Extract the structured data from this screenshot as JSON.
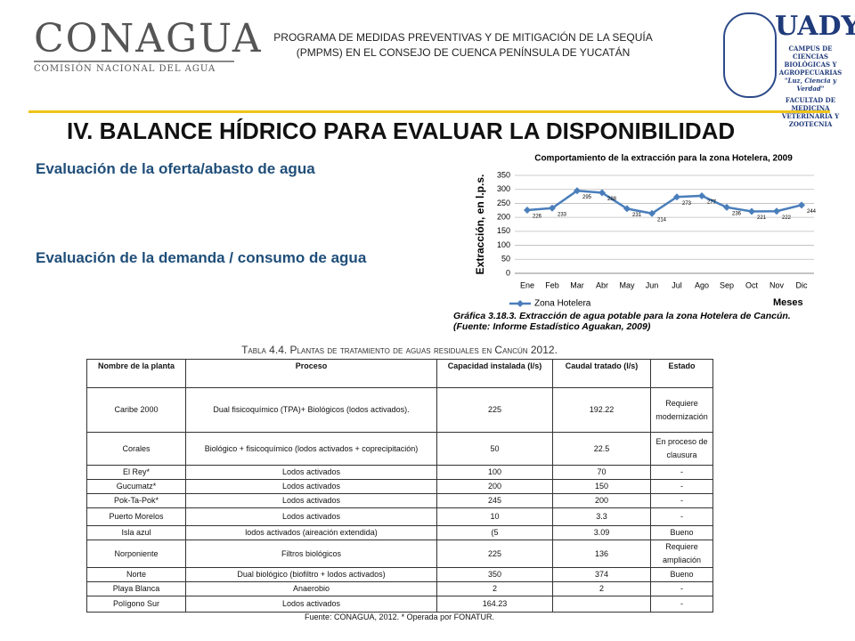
{
  "header": {
    "left_logo": {
      "name": "CONAGUA",
      "subtitle": "COMISIÓN NACIONAL DEL AGUA"
    },
    "program_lines": [
      "PROGRAMA DE MEDIDAS PREVENTIVAS Y DE MITIGACIÓN DE LA SEQUÍA",
      "(PMPMS) EN EL CONSEJO DE CUENCA PENÍNSULA DE YUCATÁN"
    ],
    "right_logo": {
      "name": "UADY",
      "lines": [
        "CAMPUS DE",
        "CIENCIAS",
        "BIOLÓGICAS Y",
        "AGROPECUARIAS",
        "\"Luz, Ciencia y Verdad\"",
        "FACULTAD DE MEDICINA",
        "VETERINARIA Y ZOOTECNIA"
      ]
    }
  },
  "title": "IV. BALANCE HÍDRICO PARA EVALUAR LA DISPONIBILIDAD",
  "sections": [
    "Evaluación de la oferta/abasto de agua",
    "Evaluación de la demanda / consumo de agua"
  ],
  "chart_data": {
    "type": "line",
    "title": "Comportamiento de la extracción para la zona Hotelera, 2009",
    "y_label": "Extracción, en l.p.s.",
    "x_label": "Meses",
    "categories": [
      "Ene",
      "Feb",
      "Mar",
      "Abr",
      "May",
      "Jun",
      "Jul",
      "Ago",
      "Sep",
      "Oct",
      "Nov",
      "Dic"
    ],
    "series": [
      {
        "name": "Zona Hotelera",
        "color": "#4a7ebb",
        "values": [
          226,
          233,
          295,
          288,
          231,
          214,
          273,
          277,
          236,
          221,
          222,
          244
        ]
      }
    ],
    "ylim": [
      0,
      350
    ],
    "yticks": [
      0,
      50,
      100,
      150,
      200,
      250,
      300,
      350
    ],
    "grid": true,
    "caption": [
      "Gráfica 3.18.3. Extracción de agua potable para la zona Hotelera de Cancún.",
      "(Fuente: Informe Estadístico Aguakan, 2009)"
    ]
  },
  "table": {
    "title": "Tabla 4.4. Plantas de tratamiento de aguas residuales en Cancún 2012.",
    "headers": [
      "Nombre de la planta",
      "Proceso",
      "Capacidad instalada (l/s)",
      "Caudal tratado (l/s)",
      "Estado"
    ],
    "rows": [
      {
        "name": "Caribe 2000",
        "process": "Dual fisicoquímico (TPA)+ Biológicos (lodos activados).",
        "capacity": "225",
        "flow": "192.22",
        "status": "Requiere modernización"
      },
      {
        "name": "Corales",
        "process": "Biológico + fisicoquímico (lodos activados + coprecipitación)",
        "capacity": "50",
        "flow": "22.5",
        "status": "En proceso de clausura"
      },
      {
        "name": "El Rey*",
        "process": "Lodos activados",
        "capacity": "100",
        "flow": "70",
        "status": "-"
      },
      {
        "name": "Gucumatz*",
        "process": "Lodos activados",
        "capacity": "200",
        "flow": "150",
        "status": "-"
      },
      {
        "name": "Pok-Ta-Pok*",
        "process": "Lodos activados",
        "capacity": "245",
        "flow": "200",
        "status": "-"
      },
      {
        "name": "Puerto Morelos",
        "process": "Lodos activados",
        "capacity": "10",
        "flow": "3.3",
        "status": "-"
      },
      {
        "name": "Isla azul",
        "process": "lodos activados (aireación extendida)",
        "capacity": "(5",
        "flow": "3.09",
        "status": "Bueno"
      },
      {
        "name": "Norponiente",
        "process": "Filtros biológicos",
        "capacity": "225",
        "flow": "136",
        "status": "Requiere ampliación"
      },
      {
        "name": "Norte",
        "process": "Dual biológico (biofiltro + lodos activados)",
        "capacity": "350",
        "flow": "374",
        "status": "Bueno"
      },
      {
        "name": "Playa Blanca",
        "process": "Anaerobio",
        "capacity": "2",
        "flow": "2",
        "status": "-"
      },
      {
        "name": "Polígono Sur",
        "process": "Lodos activados",
        "capacity": "164.23",
        "status": "-"
      }
    ],
    "footnote": "Fuente: CONAGUA, 2012. * Operada por FONATUR."
  }
}
